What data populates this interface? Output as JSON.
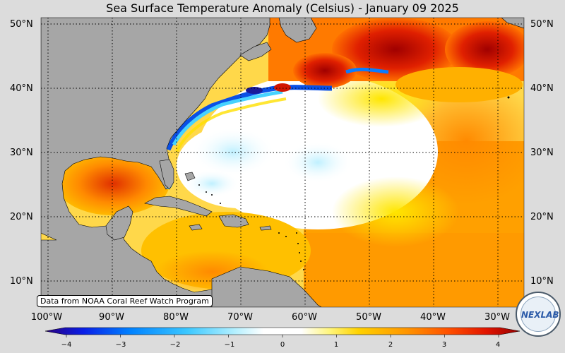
{
  "title": "Sea Surface Temperature Anomaly (Celsius) - January 09 2025",
  "credit": "Data from NOAA Coral Reef Watch Program",
  "latitude_labels": [
    "50°N",
    "40°N",
    "30°N",
    "20°N",
    "10°N"
  ],
  "latitude_labels_right": [
    "50°N",
    "40°N",
    "30°N",
    "20°N",
    "10°N"
  ],
  "longitude_labels": [
    "100°W",
    "90°W",
    "80°W",
    "70°W",
    "60°W",
    "50°W",
    "40°W",
    "30°W"
  ],
  "colorbar": {
    "ticks": [
      "−4",
      "−3",
      "−2",
      "−1",
      "0",
      "1",
      "2",
      "3",
      "4"
    ],
    "range": [
      -4,
      4
    ],
    "colors": [
      "#2a0080",
      "#0a1ee6",
      "#0082ff",
      "#3cc8ff",
      "#b4f0ff",
      "#ffffff",
      "#ffffff",
      "#fff57a",
      "#ffd200",
      "#ff9600",
      "#ff5000",
      "#e11400",
      "#960000"
    ]
  },
  "logo_text": "NEXLAB",
  "colors": {
    "land": "#a6a6a6",
    "ocean_neutral": "#ffffff",
    "warm": "#ffaa00",
    "hot": "#c80000",
    "cool": "#0050ff",
    "cold": "#20209a"
  }
}
